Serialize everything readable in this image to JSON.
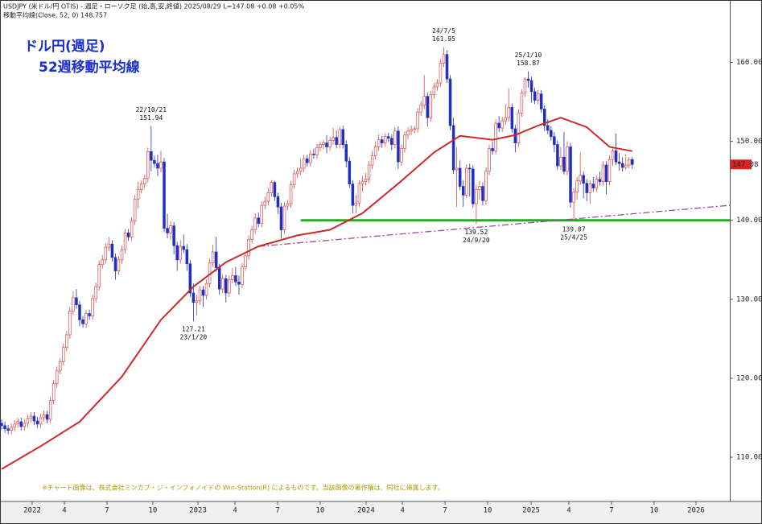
{
  "header": {
    "line1": "USDJPY (米ドル/円 OTIS) - 週足・ローソク足 (始,高,安,終値) 2025/08/29 L=147.08 +0.08 +0.05%",
    "line2": "移動平均線(Close, 52, 0) 148.757"
  },
  "chart_data": {
    "type": "candlestick",
    "title": "ドル円(週足)",
    "subtitle": "52週移動平均線",
    "footnote": "※チャート画像は、株式会社ミンカブ・ジ・インフォノイドの Win-Station(R) によるものです。当該画像の著作権は、同社に帰属します。",
    "up_color": "#d94848",
    "down_color": "#1f2fbf",
    "candles": [
      [
        114.3,
        114.8,
        113.5,
        114.0
      ],
      [
        114.0,
        114.5,
        113.1,
        113.6
      ],
      [
        113.6,
        114.1,
        112.9,
        113.4
      ],
      [
        113.4,
        114.3,
        112.9,
        113.8
      ],
      [
        113.8,
        114.7,
        113.3,
        114.2
      ],
      [
        114.2,
        115.0,
        113.7,
        114.5
      ],
      [
        114.5,
        115.0,
        113.4,
        113.9
      ],
      [
        113.9,
        114.8,
        113.4,
        114.3
      ],
      [
        114.3,
        115.4,
        113.8,
        114.9
      ],
      [
        114.9,
        115.7,
        114.4,
        115.2
      ],
      [
        115.2,
        115.7,
        114.1,
        114.6
      ],
      [
        114.6,
        115.1,
        113.7,
        114.2
      ],
      [
        114.2,
        115.5,
        113.7,
        115.0
      ],
      [
        115.0,
        115.9,
        114.5,
        115.4
      ],
      [
        115.4,
        115.9,
        114.3,
        114.8
      ],
      [
        114.8,
        117.7,
        114.3,
        117.2
      ],
      [
        117.2,
        119.8,
        116.7,
        119.3
      ],
      [
        119.3,
        121.5,
        118.8,
        121.0
      ],
      [
        121.0,
        122.6,
        120.5,
        122.1
      ],
      [
        122.1,
        124.4,
        121.6,
        123.9
      ],
      [
        123.9,
        126.0,
        123.4,
        125.5
      ],
      [
        125.5,
        129.0,
        125.0,
        128.5
      ],
      [
        128.5,
        131.0,
        128.0,
        130.2
      ],
      [
        130.2,
        131.3,
        128.8,
        129.3
      ],
      [
        129.3,
        129.8,
        126.6,
        127.4
      ],
      [
        127.4,
        127.9,
        126.4,
        126.9
      ],
      [
        126.9,
        128.7,
        126.4,
        128.2
      ],
      [
        128.2,
        128.7,
        127.4,
        127.9
      ],
      [
        127.9,
        130.6,
        127.4,
        130.1
      ],
      [
        130.1,
        132.1,
        129.6,
        131.6
      ],
      [
        131.6,
        134.9,
        131.1,
        134.4
      ],
      [
        134.4,
        135.6,
        133.9,
        135.0
      ],
      [
        135.0,
        137.1,
        134.5,
        136.6
      ],
      [
        136.6,
        137.9,
        136.1,
        137.0
      ],
      [
        137.0,
        137.5,
        134.8,
        135.3
      ],
      [
        135.3,
        135.8,
        132.5,
        133.6
      ],
      [
        133.6,
        135.5,
        133.1,
        135.0
      ],
      [
        135.0,
        136.8,
        134.5,
        136.3
      ],
      [
        136.3,
        138.9,
        135.8,
        138.4
      ],
      [
        138.4,
        138.9,
        137.4,
        137.9
      ],
      [
        137.9,
        140.4,
        137.4,
        139.9
      ],
      [
        139.9,
        143.2,
        139.4,
        142.7
      ],
      [
        142.7,
        144.9,
        141.5,
        143.9
      ],
      [
        143.9,
        145.1,
        143.4,
        144.6
      ],
      [
        144.6,
        145.8,
        144.1,
        145.3
      ],
      [
        145.3,
        149.2,
        144.8,
        148.7
      ],
      [
        148.7,
        151.94,
        146.2,
        147.6
      ],
      [
        147.6,
        148.2,
        146.7,
        147.2
      ],
      [
        147.2,
        148.3,
        145.6,
        146.6
      ],
      [
        146.6,
        148.8,
        146.1,
        147.4
      ],
      [
        147.4,
        147.9,
        138.5,
        139.0
      ],
      [
        139.0,
        140.8,
        137.7,
        138.4
      ],
      [
        138.4,
        139.9,
        137.5,
        139.3
      ],
      [
        139.3,
        139.8,
        135.7,
        136.8
      ],
      [
        136.8,
        137.3,
        133.6,
        135.0
      ],
      [
        135.0,
        137.5,
        134.5,
        136.7
      ],
      [
        136.7,
        138.2,
        135.8,
        136.3
      ],
      [
        136.3,
        137.0,
        133.6,
        134.5
      ],
      [
        134.5,
        135.0,
        130.3,
        130.8
      ],
      [
        130.8,
        132.0,
        127.21,
        129.6
      ],
      [
        129.6,
        130.6,
        128.0,
        129.8
      ],
      [
        129.8,
        131.7,
        129.3,
        131.2
      ],
      [
        131.2,
        131.7,
        129.0,
        130.5
      ],
      [
        130.5,
        132.5,
        130.0,
        132.0
      ],
      [
        132.0,
        135.1,
        131.5,
        134.6
      ],
      [
        134.6,
        136.9,
        134.1,
        136.0
      ],
      [
        136.0,
        137.9,
        133.5,
        134.0
      ],
      [
        134.0,
        134.5,
        130.6,
        131.3
      ],
      [
        131.3,
        133.1,
        130.8,
        132.6
      ],
      [
        132.6,
        133.1,
        129.6,
        130.8
      ],
      [
        130.8,
        133.0,
        130.3,
        132.5
      ],
      [
        132.5,
        134.0,
        132.0,
        133.0
      ],
      [
        133.0,
        134.1,
        131.7,
        132.2
      ],
      [
        132.2,
        133.0,
        130.6,
        131.9
      ],
      [
        131.9,
        134.6,
        131.4,
        134.1
      ],
      [
        134.1,
        136.0,
        133.6,
        135.5
      ],
      [
        135.5,
        138.1,
        135.0,
        137.6
      ],
      [
        137.6,
        139.3,
        137.1,
        138.8
      ],
      [
        138.8,
        140.9,
        138.3,
        140.3
      ],
      [
        140.3,
        141.0,
        139.1,
        139.6
      ],
      [
        139.6,
        142.4,
        139.1,
        141.9
      ],
      [
        141.9,
        143.0,
        141.4,
        142.4
      ],
      [
        142.4,
        144.1,
        141.9,
        143.5
      ],
      [
        143.5,
        145.1,
        143.0,
        144.8
      ],
      [
        144.8,
        145.0,
        142.5,
        143.0
      ],
      [
        143.0,
        143.5,
        140.8,
        141.7
      ],
      [
        141.7,
        142.2,
        137.7,
        138.8
      ],
      [
        138.8,
        142.3,
        138.3,
        141.8
      ],
      [
        141.8,
        142.6,
        141.3,
        142.1
      ],
      [
        142.1,
        145.0,
        141.6,
        144.5
      ],
      [
        144.5,
        146.4,
        144.0,
        145.9
      ],
      [
        145.9,
        146.7,
        145.4,
        146.2
      ],
      [
        146.2,
        147.8,
        145.7,
        146.6
      ],
      [
        146.6,
        148.3,
        146.1,
        147.8
      ],
      [
        147.8,
        148.3,
        146.8,
        147.3
      ],
      [
        147.3,
        148.9,
        146.8,
        148.4
      ],
      [
        148.4,
        149.1,
        147.8,
        148.3
      ],
      [
        148.3,
        149.7,
        147.8,
        149.2
      ],
      [
        149.2,
        150.0,
        148.7,
        149.6
      ],
      [
        149.6,
        150.2,
        149.0,
        149.8
      ],
      [
        149.8,
        150.8,
        148.5,
        149.3
      ],
      [
        149.3,
        150.6,
        148.8,
        150.1
      ],
      [
        150.1,
        151.7,
        149.6,
        150.5
      ],
      [
        150.5,
        151.4,
        149.1,
        149.6
      ],
      [
        149.6,
        151.9,
        149.1,
        151.5
      ],
      [
        151.5,
        152.0,
        149.1,
        149.6
      ],
      [
        149.6,
        150.1,
        146.7,
        147.5
      ],
      [
        147.5,
        148.0,
        144.1,
        144.6
      ],
      [
        144.6,
        145.1,
        140.9,
        141.9
      ],
      [
        141.9,
        143.2,
        140.9,
        142.2
      ],
      [
        142.2,
        145.1,
        141.7,
        144.6
      ],
      [
        144.6,
        145.6,
        143.6,
        144.9
      ],
      [
        144.9,
        146.0,
        144.4,
        145.2
      ],
      [
        145.2,
        147.5,
        144.7,
        147.0
      ],
      [
        147.0,
        148.8,
        146.5,
        148.2
      ],
      [
        148.2,
        150.0,
        147.7,
        149.3
      ],
      [
        149.3,
        150.9,
        148.8,
        150.2
      ],
      [
        150.2,
        150.7,
        149.2,
        149.8
      ],
      [
        149.8,
        151.0,
        149.3,
        150.6
      ],
      [
        150.6,
        151.1,
        149.9,
        150.4
      ],
      [
        150.4,
        150.9,
        148.9,
        149.6
      ],
      [
        149.6,
        151.8,
        149.1,
        151.3
      ],
      [
        151.3,
        151.9,
        146.5,
        147.4
      ],
      [
        147.4,
        149.6,
        146.9,
        149.1
      ],
      [
        149.1,
        151.3,
        148.6,
        150.8
      ],
      [
        150.8,
        151.8,
        150.3,
        151.3
      ],
      [
        151.3,
        152.0,
        150.8,
        151.5
      ],
      [
        151.5,
        152.0,
        151.0,
        151.6
      ],
      [
        151.6,
        154.2,
        151.1,
        153.7
      ],
      [
        153.7,
        155.1,
        153.2,
        154.6
      ],
      [
        154.6,
        158.4,
        154.1,
        155.7
      ],
      [
        155.7,
        156.2,
        151.9,
        153.0
      ],
      [
        153.0,
        156.4,
        152.5,
        155.9
      ],
      [
        155.9,
        157.4,
        155.4,
        156.9
      ],
      [
        156.9,
        157.9,
        156.4,
        157.4
      ],
      [
        157.4,
        160.4,
        156.9,
        159.9
      ],
      [
        159.9,
        161.95,
        159.4,
        161.0
      ],
      [
        161.0,
        161.5,
        157.4,
        157.9
      ],
      [
        157.9,
        158.4,
        151.4,
        152.0
      ],
      [
        152.0,
        153.0,
        145.9,
        146.4
      ],
      [
        146.4,
        149.3,
        141.7,
        146.6
      ],
      [
        146.6,
        147.6,
        143.8,
        144.3
      ],
      [
        144.3,
        145.1,
        141.7,
        143.2
      ],
      [
        143.2,
        147.1,
        142.8,
        146.6
      ],
      [
        146.6,
        147.2,
        143.0,
        146.5
      ],
      [
        146.5,
        147.0,
        141.6,
        142.1
      ],
      [
        142.1,
        144.5,
        139.52,
        143.9
      ],
      [
        143.9,
        145.0,
        142.6,
        144.3
      ],
      [
        144.3,
        144.8,
        141.9,
        142.5
      ],
      [
        142.5,
        146.7,
        142.0,
        146.2
      ],
      [
        146.2,
        149.6,
        145.7,
        149.1
      ],
      [
        149.1,
        150.0,
        148.3,
        148.8
      ],
      [
        148.8,
        152.8,
        148.3,
        152.3
      ],
      [
        152.3,
        153.2,
        151.2,
        151.7
      ],
      [
        151.7,
        153.1,
        151.2,
        152.6
      ],
      [
        152.6,
        154.7,
        152.1,
        153.0
      ],
      [
        153.0,
        156.7,
        152.5,
        154.3
      ],
      [
        154.3,
        154.8,
        151.1,
        151.6
      ],
      [
        151.6,
        152.1,
        148.6,
        149.8
      ],
      [
        149.8,
        154.1,
        149.3,
        153.6
      ],
      [
        153.6,
        156.6,
        153.1,
        156.1
      ],
      [
        156.1,
        158.1,
        155.6,
        157.9
      ],
      [
        157.9,
        158.87,
        156.8,
        157.7
      ],
      [
        157.7,
        158.2,
        154.9,
        156.3
      ],
      [
        156.3,
        156.8,
        154.7,
        155.2
      ],
      [
        155.2,
        156.5,
        154.7,
        156.0
      ],
      [
        156.0,
        156.5,
        153.6,
        154.1
      ],
      [
        154.1,
        154.6,
        151.3,
        152.0
      ],
      [
        152.0,
        152.8,
        150.9,
        151.4
      ],
      [
        151.4,
        151.9,
        150.1,
        150.6
      ],
      [
        150.6,
        151.2,
        148.6,
        149.6
      ],
      [
        149.6,
        150.1,
        146.4,
        146.9
      ],
      [
        146.9,
        149.3,
        146.4,
        148.0
      ],
      [
        148.0,
        151.2,
        145.8,
        146.2
      ],
      [
        146.2,
        150.0,
        145.7,
        149.3
      ],
      [
        149.3,
        149.8,
        141.6,
        142.3
      ],
      [
        142.3,
        144.1,
        139.87,
        143.6
      ],
      [
        143.6,
        145.5,
        142.6,
        145.0
      ],
      [
        145.0,
        148.6,
        144.5,
        145.7
      ],
      [
        145.7,
        146.2,
        142.8,
        144.7
      ],
      [
        144.7,
        145.2,
        142.4,
        143.5
      ],
      [
        143.5,
        145.1,
        142.1,
        144.6
      ],
      [
        144.6,
        145.5,
        143.6,
        144.1
      ],
      [
        144.1,
        145.7,
        143.6,
        145.2
      ],
      [
        145.2,
        146.2,
        144.4,
        144.9
      ],
      [
        144.9,
        147.5,
        144.4,
        147.0
      ],
      [
        147.0,
        147.5,
        143.3,
        144.9
      ],
      [
        144.9,
        148.2,
        144.4,
        147.7
      ],
      [
        147.7,
        149.2,
        146.9,
        148.8
      ],
      [
        148.8,
        151.0,
        147.0,
        147.4
      ],
      [
        147.4,
        148.5,
        146.3,
        147.2
      ],
      [
        147.2,
        148.0,
        146.2,
        146.7
      ],
      [
        146.7,
        148.4,
        146.4,
        147.0
      ],
      [
        147.0,
        148.0,
        146.6,
        147.7
      ],
      [
        147.7,
        148.0,
        146.5,
        147.08
      ]
    ],
    "ma": {
      "color": "#cc2a2a",
      "x": [
        0,
        12,
        24,
        37,
        49,
        59,
        69,
        79,
        91,
        101,
        111,
        123,
        133,
        141,
        151,
        158,
        165,
        172,
        180,
        187,
        194
      ],
      "values": [
        108.5,
        111.4,
        114.5,
        120.2,
        127.4,
        131.6,
        134.7,
        136.7,
        138.1,
        138.8,
        140.9,
        145.0,
        148.6,
        150.7,
        150.2,
        150.8,
        152.0,
        153.0,
        151.8,
        149.3,
        148.757
      ]
    },
    "support": {
      "value": 140,
      "x": [
        92,
        224
      ],
      "color": "#22aa22"
    },
    "trendline": {
      "x": [
        79,
        224
      ],
      "values": [
        136.7,
        141.9
      ],
      "color": "#9a4a9a"
    },
    "annotations": [
      {
        "date": "22/10/21",
        "value": 151.94
      },
      {
        "date": "23/1/20",
        "value": 127.21
      },
      {
        "date": "24/7/5",
        "value": 161.95
      },
      {
        "date": "24/9/20",
        "value": 139.52
      },
      {
        "date": "25/1/10",
        "value": 158.87
      },
      {
        "date": "25/4/25",
        "value": 139.87
      }
    ],
    "last_price": 147.08,
    "xlim": [
      -0.5,
      224
    ],
    "xticks": [
      {
        "value": 9.4,
        "label": "2022"
      },
      {
        "value": 19.3,
        "label": "4"
      },
      {
        "value": 32.4,
        "label": "7"
      },
      {
        "value": 46.5,
        "label": "10"
      },
      {
        "value": 60.4,
        "label": "2023"
      },
      {
        "value": 71.8,
        "label": "4"
      },
      {
        "value": 84.9,
        "label": "7"
      },
      {
        "value": 98,
        "label": "10"
      },
      {
        "value": 112.1,
        "label": "2024"
      },
      {
        "value": 123.3,
        "label": "4"
      },
      {
        "value": 136.4,
        "label": "7"
      },
      {
        "value": 149.5,
        "label": "10"
      },
      {
        "value": 162.9,
        "label": "2025"
      },
      {
        "value": 174.5,
        "label": "4"
      },
      {
        "value": 187.6,
        "label": "7"
      },
      {
        "value": 200.7,
        "label": "10"
      },
      {
        "value": 213.6,
        "label": "2026"
      }
    ],
    "ylim": [
      104.4,
      167.8
    ],
    "yticks": [
      {
        "value": 110,
        "label": "110.00"
      },
      {
        "value": 120,
        "label": "120.00"
      },
      {
        "value": 130,
        "label": "130.00"
      },
      {
        "value": 140,
        "label": "140.00"
      },
      {
        "value": 150,
        "label": "150.00"
      },
      {
        "value": 160,
        "label": "160.00"
      }
    ]
  }
}
